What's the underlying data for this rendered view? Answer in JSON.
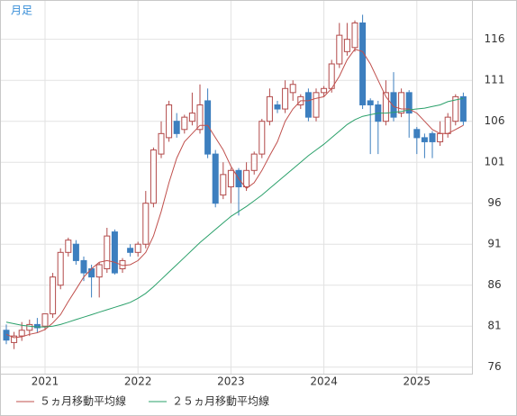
{
  "chart_data": {
    "type": "candlestick",
    "label": "月足",
    "categories": [
      null,
      null,
      null,
      null,
      null,
      "2021",
      null,
      null,
      null,
      null,
      null,
      null,
      null,
      null,
      null,
      null,
      null,
      "2022",
      null,
      null,
      null,
      null,
      null,
      null,
      null,
      null,
      null,
      null,
      null,
      "2023",
      null,
      null,
      null,
      null,
      null,
      null,
      null,
      null,
      null,
      null,
      null,
      "2024",
      null,
      null,
      null,
      null,
      null,
      null,
      null,
      null,
      null,
      null,
      null,
      "2025",
      null,
      null,
      null,
      null,
      null,
      null
    ],
    "open": [
      80.5,
      79,
      79.8,
      80.5,
      81.2,
      81,
      82.5,
      86,
      90,
      91,
      89,
      88,
      87,
      88,
      92.5,
      88,
      90.5,
      90,
      91,
      96,
      102,
      104,
      106,
      105,
      106,
      105,
      108.5,
      102,
      97,
      98,
      100,
      98,
      100,
      102,
      106,
      108,
      107.5,
      109.5,
      108,
      109.5,
      106.5,
      109.5,
      110,
      113,
      114.5,
      115,
      118,
      108.5,
      108,
      106,
      109.5,
      107,
      109.5,
      105,
      104,
      104.5,
      103.5,
      104.5,
      106,
      109
    ],
    "high": [
      81.2,
      80.3,
      81.5,
      81.8,
      82,
      82.5,
      87.5,
      90.5,
      91.8,
      91.5,
      89.5,
      88.5,
      88.8,
      93,
      92.8,
      89.3,
      91,
      91.3,
      97.5,
      102.8,
      106,
      108.5,
      107,
      106.8,
      109.5,
      110.5,
      110,
      102.5,
      101,
      100.3,
      100.3,
      101,
      102.3,
      106.3,
      110,
      108.5,
      111,
      111,
      109.3,
      110,
      110,
      110.3,
      113.5,
      118,
      118,
      118.3,
      119,
      108.8,
      108.5,
      111,
      112,
      110,
      109.8,
      105.3,
      104.5,
      104.8,
      106,
      107,
      109.3,
      109.5
    ],
    "low": [
      78.8,
      78.2,
      79.2,
      79.8,
      80.2,
      80.5,
      82,
      85.5,
      89.5,
      88.5,
      86.5,
      84.5,
      84.5,
      87.5,
      87.3,
      87.5,
      89.5,
      89.5,
      90.5,
      95.5,
      101.5,
      103.5,
      104,
      104.5,
      105.5,
      104.5,
      101.5,
      95.5,
      96.5,
      96,
      94.5,
      97.5,
      99.5,
      101.5,
      105.5,
      107,
      107,
      108.5,
      107.5,
      106,
      106,
      109,
      109.5,
      112.5,
      114,
      114.5,
      107.5,
      102,
      102,
      105.5,
      106,
      106.5,
      104,
      102,
      101.5,
      101.5,
      103,
      104,
      105.5,
      105.5
    ],
    "close": [
      79.3,
      79.8,
      80.5,
      81.2,
      80.8,
      82.5,
      87,
      90,
      91.5,
      89,
      87.5,
      87,
      88.5,
      92,
      87.5,
      89,
      90,
      91,
      96,
      102.5,
      104.5,
      108,
      104.5,
      106.5,
      107,
      108,
      102,
      96,
      99.5,
      100,
      98,
      100,
      102,
      106,
      109,
      107.5,
      110,
      110.5,
      109,
      106.5,
      109.5,
      110,
      113,
      116.5,
      116,
      118,
      108,
      108,
      106,
      109.5,
      106.5,
      109.5,
      107,
      104,
      103.5,
      103.5,
      104.5,
      106.5,
      109,
      106
    ],
    "up_color": "#b24a4a",
    "down_color": "#3d7fbf",
    "lines": [
      {
        "name": "５ヵ月移動平均線",
        "color": "#c0504d",
        "values": [
          80,
          79.6,
          79.7,
          80,
          80.2,
          80.6,
          81.4,
          82.4,
          84,
          85.5,
          87,
          88,
          88.8,
          89,
          88.8,
          88.4,
          88.5,
          89,
          90,
          92,
          95,
          98.5,
          101.5,
          103.5,
          104.5,
          105.5,
          105.5,
          104,
          102.5,
          100.5,
          99,
          97.8,
          98.5,
          100,
          101.8,
          103.5,
          106,
          107.5,
          108.5,
          108.5,
          108.8,
          109,
          110,
          111.5,
          113.5,
          114.8,
          114.5,
          113,
          111,
          109,
          107.8,
          107.5,
          107.5,
          107,
          106,
          105,
          104.5,
          104.5,
          105,
          105.5
        ]
      },
      {
        "name": "２５ヵ月移動平均線",
        "color": "#2aa06a",
        "values": [
          81.5,
          81.3,
          81.1,
          81,
          80.9,
          80.9,
          81,
          81.2,
          81.5,
          81.8,
          82.1,
          82.4,
          82.7,
          83,
          83.3,
          83.6,
          83.9,
          84.4,
          85,
          85.8,
          86.7,
          87.6,
          88.5,
          89.4,
          90.3,
          91.2,
          92,
          92.8,
          93.6,
          94.4,
          95,
          95.6,
          96.3,
          97,
          97.8,
          98.6,
          99.4,
          100.2,
          101,
          101.8,
          102.5,
          103.2,
          104,
          104.8,
          105.6,
          106.2,
          106.6,
          106.8,
          107,
          107,
          107.1,
          107.2,
          107.4,
          107.5,
          107.6,
          107.8,
          108,
          108.4,
          108.6,
          108.8
        ]
      }
    ],
    "ylim": [
      75.2,
      120.8
    ],
    "yticks": [
      76,
      81,
      86,
      91,
      96,
      101,
      106,
      111,
      116
    ],
    "grid": true
  }
}
